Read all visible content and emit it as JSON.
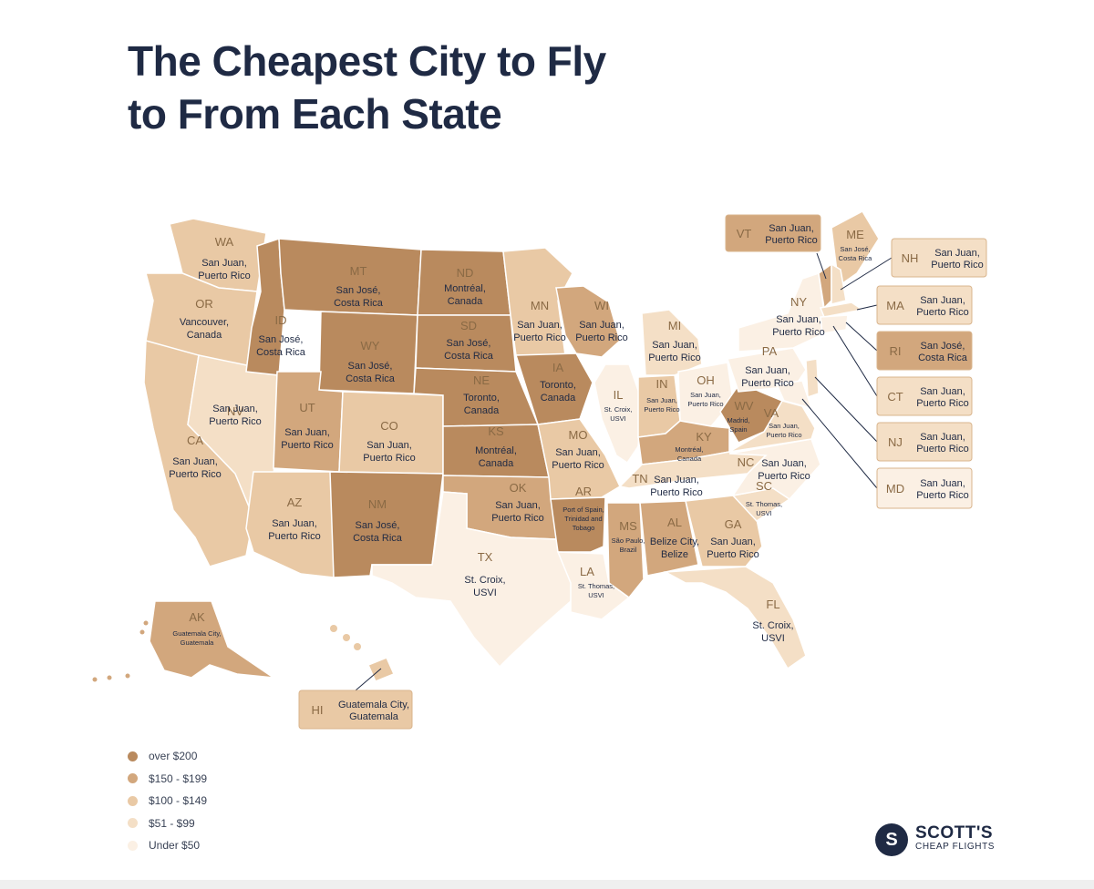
{
  "title": {
    "line1": "The Cheapest City to Fly",
    "line2": "to From Each State"
  },
  "colors": {
    "over_200": "#b98a5e",
    "150_199": "#d2a77d",
    "100_149": "#e9c9a5",
    "51_99": "#f4dfc6",
    "under_50": "#fbf0e4"
  },
  "legend": [
    {
      "tier": "over_200",
      "label": "over $200"
    },
    {
      "tier": "150_199",
      "label": "$150 - $199"
    },
    {
      "tier": "100_149",
      "label": "$100 - $149"
    },
    {
      "tier": "51_99",
      "label": "$51 - $99"
    },
    {
      "tier": "under_50",
      "label": "Under $50"
    }
  ],
  "states": {
    "WA": {
      "abbr": "WA",
      "city": [
        "San Juan,",
        "Puerto Rico"
      ],
      "tier": "100_149"
    },
    "OR": {
      "abbr": "OR",
      "city": [
        "Vancouver,",
        "Canada"
      ],
      "tier": "100_149"
    },
    "CA": {
      "abbr": "CA",
      "city": [
        "San Juan,",
        "Puerto Rico"
      ],
      "tier": "100_149"
    },
    "NV": {
      "abbr": "NV",
      "city": [
        "San Juan,",
        "Puerto Rico"
      ],
      "tier": "51_99"
    },
    "ID": {
      "abbr": "ID",
      "city": [
        "San José,",
        "Costa Rica"
      ],
      "tier": "over_200"
    },
    "MT": {
      "abbr": "MT",
      "city": [
        "San José,",
        "Costa Rica"
      ],
      "tier": "over_200"
    },
    "WY": {
      "abbr": "WY",
      "city": [
        "San José,",
        "Costa Rica"
      ],
      "tier": "over_200"
    },
    "UT": {
      "abbr": "UT",
      "city": [
        "San Juan,",
        "Puerto Rico"
      ],
      "tier": "150_199"
    },
    "AZ": {
      "abbr": "AZ",
      "city": [
        "San Juan,",
        "Puerto Rico"
      ],
      "tier": "100_149"
    },
    "CO": {
      "abbr": "CO",
      "city": [
        "San Juan,",
        "Puerto Rico"
      ],
      "tier": "100_149"
    },
    "NM": {
      "abbr": "NM",
      "city": [
        "San José,",
        "Costa Rica"
      ],
      "tier": "over_200"
    },
    "ND": {
      "abbr": "ND",
      "city": [
        "Montréal,",
        "Canada"
      ],
      "tier": "over_200"
    },
    "SD": {
      "abbr": "SD",
      "city": [
        "San José,",
        "Costa Rica"
      ],
      "tier": "over_200"
    },
    "NE": {
      "abbr": "NE",
      "city": [
        "Toronto,",
        "Canada"
      ],
      "tier": "over_200"
    },
    "KS": {
      "abbr": "KS",
      "city": [
        "Montréal,",
        "Canada"
      ],
      "tier": "over_200"
    },
    "OK": {
      "abbr": "OK",
      "city": [
        "San Juan,",
        "Puerto Rico"
      ],
      "tier": "150_199"
    },
    "TX": {
      "abbr": "TX",
      "city": [
        "St. Croix,",
        "USVI"
      ],
      "tier": "under_50"
    },
    "MN": {
      "abbr": "MN",
      "city": [
        "San Juan,",
        "Puerto Rico"
      ],
      "tier": "100_149"
    },
    "IA": {
      "abbr": "IA",
      "city": [
        "Toronto,",
        "Canada"
      ],
      "tier": "over_200"
    },
    "MO": {
      "abbr": "MO",
      "city": [
        "San Juan,",
        "Puerto Rico"
      ],
      "tier": "100_149"
    },
    "AR": {
      "abbr": "AR",
      "city": [
        "Port of Spain,",
        "Trinidad and",
        "Tobago"
      ],
      "tier": "over_200"
    },
    "LA": {
      "abbr": "LA",
      "city": [
        "St. Thomas,",
        "USVI"
      ],
      "tier": "under_50"
    },
    "WI": {
      "abbr": "WI",
      "city": [
        "San Juan,",
        "Puerto Rico"
      ],
      "tier": "150_199"
    },
    "IL": {
      "abbr": "IL",
      "city": [
        "St. Croix,",
        "USVI"
      ],
      "tier": "under_50"
    },
    "MI": {
      "abbr": "MI",
      "city": [
        "San Juan,",
        "Puerto Rico"
      ],
      "tier": "51_99"
    },
    "IN": {
      "abbr": "IN",
      "city": [
        "San Juan,",
        "Puerto Rico"
      ],
      "tier": "100_149"
    },
    "OH": {
      "abbr": "OH",
      "city": [
        "San Juan,",
        "Puerto Rico"
      ],
      "tier": "under_50"
    },
    "KY": {
      "abbr": "KY",
      "city": [
        "Montréal,",
        "Canada"
      ],
      "tier": "150_199"
    },
    "TN": {
      "abbr": "TN",
      "city": [
        "San Juan,",
        "Puerto Rico"
      ],
      "tier": "51_99"
    },
    "MS": {
      "abbr": "MS",
      "city": [
        "São Paulo,",
        "Brazil"
      ],
      "tier": "150_199"
    },
    "AL": {
      "abbr": "AL",
      "city": [
        "Belize City,",
        "Belize"
      ],
      "tier": "150_199"
    },
    "GA": {
      "abbr": "GA",
      "city": [
        "San Juan,",
        "Puerto Rico"
      ],
      "tier": "100_149"
    },
    "FL": {
      "abbr": "FL",
      "city": [
        "St. Croix,",
        "USVI"
      ],
      "tier": "51_99"
    },
    "SC": {
      "abbr": "SC",
      "city": [
        "St. Thomas,",
        "USVI"
      ],
      "tier": "51_99"
    },
    "NC": {
      "abbr": "NC",
      "city": [
        "San Juan,",
        "Puerto Rico"
      ],
      "tier": "under_50"
    },
    "VA": {
      "abbr": "VA",
      "city": [
        "San Juan,",
        "Puerto Rico"
      ],
      "tier": "51_99"
    },
    "WV": {
      "abbr": "WV",
      "city": [
        "Madrid,",
        "Spain"
      ],
      "tier": "over_200"
    },
    "PA": {
      "abbr": "PA",
      "city": [
        "San Juan,",
        "Puerto Rico"
      ],
      "tier": "under_50"
    },
    "NY": {
      "abbr": "NY",
      "city": [
        "San Juan,",
        "Puerto Rico"
      ],
      "tier": "under_50"
    },
    "ME": {
      "abbr": "ME",
      "city": [
        "San José,",
        "Costa Rica"
      ],
      "tier": "100_149"
    },
    "AK": {
      "abbr": "AK",
      "city": [
        "Guatemala City,",
        "Guatemala"
      ],
      "tier": "150_199"
    }
  },
  "callouts": {
    "VT": {
      "abbr": "VT",
      "city": [
        "San Juan,",
        "Puerto Rico"
      ],
      "tier": "150_199"
    },
    "NH": {
      "abbr": "NH",
      "city": [
        "San Juan,",
        "Puerto Rico"
      ],
      "tier": "51_99"
    },
    "MA": {
      "abbr": "MA",
      "city": [
        "San Juan,",
        "Puerto Rico"
      ],
      "tier": "51_99"
    },
    "RI": {
      "abbr": "RI",
      "city": [
        "San José,",
        "Costa Rica"
      ],
      "tier": "150_199"
    },
    "CT": {
      "abbr": "CT",
      "city": [
        "San Juan,",
        "Puerto Rico"
      ],
      "tier": "51_99"
    },
    "NJ": {
      "abbr": "NJ",
      "city": [
        "San Juan,",
        "Puerto Rico"
      ],
      "tier": "51_99"
    },
    "MD": {
      "abbr": "MD",
      "city": [
        "San Juan,",
        "Puerto Rico"
      ],
      "tier": "under_50"
    },
    "HI": {
      "abbr": "HI",
      "city": [
        "Guatemala City,",
        "Guatemala"
      ],
      "tier": "100_149"
    }
  },
  "logo": {
    "line1": "SCOTT'S",
    "line2": "CHEAP FLIGHTS",
    "mark": "S"
  }
}
